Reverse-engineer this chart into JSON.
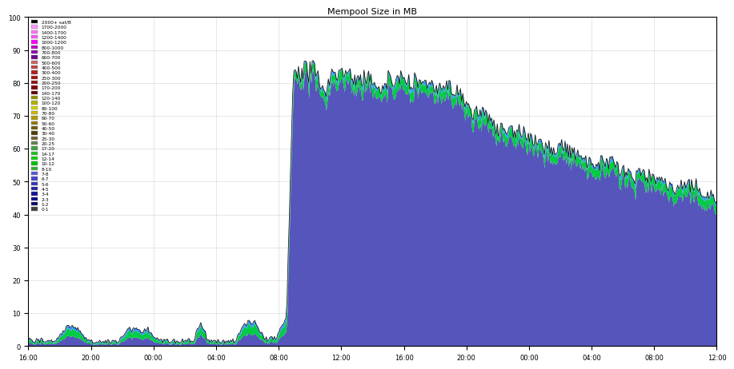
{
  "title": "Mempool Size in MB",
  "title_fontsize": 8,
  "ylim": [
    0,
    100
  ],
  "yticks": [
    0,
    10,
    20,
    30,
    40,
    50,
    60,
    70,
    80,
    90,
    100
  ],
  "xtick_labels": [
    "16:00",
    "20:00",
    "00:00",
    "04:00",
    "08:00",
    "12:00",
    "16:00",
    "20:00",
    "00:00",
    "04:00",
    "08:00",
    "12:00"
  ],
  "background_color": "#ffffff",
  "plot_bg_color": "#ffffff",
  "grid_color": "#cccccc",
  "legend_labels": [
    "2000+ sat/B",
    "1700-2000",
    "1400-1700",
    "1200-1400",
    "1000-1200",
    "800-1000",
    "700-800",
    "600-700",
    "500-600",
    "400-500",
    "300-400",
    "250-300",
    "200-250",
    "170-200",
    "140-170",
    "120-140",
    "100-120",
    "80-100",
    "70-80",
    "60-70",
    "50-60",
    "40-50",
    "30-40",
    "25-30",
    "20-25",
    "17-20",
    "14-17",
    "12-14",
    "10-12",
    "8-10",
    "7-8",
    "6-7",
    "5-6",
    "4-5",
    "3-4",
    "2-3",
    "1-2",
    "0-1"
  ],
  "legend_colors": [
    "#000000",
    "#ff94ff",
    "#ff70ff",
    "#ff50ff",
    "#ff00ff",
    "#bf00bf",
    "#9000b0",
    "#680090",
    "#d06060",
    "#c04040",
    "#b02020",
    "#a01010",
    "#901010",
    "#800000",
    "#600000",
    "#909000",
    "#b0b000",
    "#d0d000",
    "#c8b400",
    "#b09800",
    "#907800",
    "#705800",
    "#504000",
    "#706030",
    "#608050",
    "#40a040",
    "#20c020",
    "#10d010",
    "#00c000",
    "#30b030",
    "#5555dd",
    "#4444cc",
    "#3333bb",
    "#2222aa",
    "#111199",
    "#000088",
    "#000066",
    "#404040"
  ],
  "main_blue": "#5555bb",
  "green_color": "#00cc44",
  "bright_blue": "#3399ff",
  "outline_color": "#000000"
}
